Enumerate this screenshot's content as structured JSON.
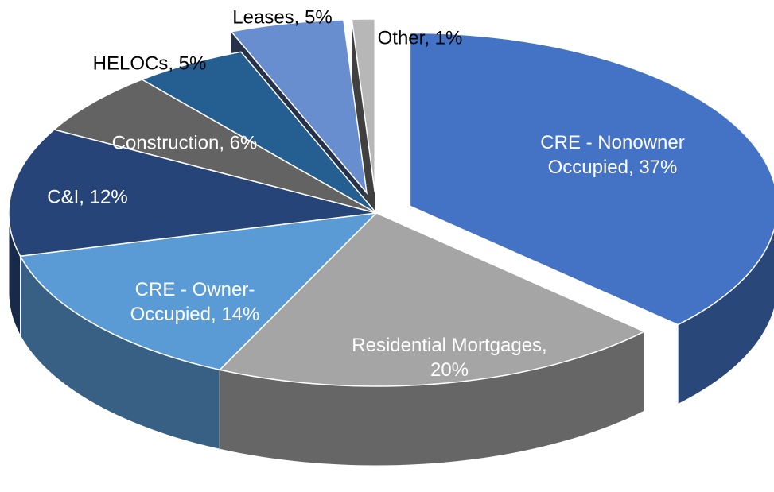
{
  "chart_data": {
    "type": "pie3d",
    "value_labels": [
      "CRE - Nonowner Occupied, 37%",
      "Residential Mortgages, 20%",
      "CRE - Owner-Occupied, 14%",
      "C&I, 12%",
      "Construction, 6%",
      "HELOCs, 5%",
      "Leases, 5%",
      "Other, 1%"
    ],
    "values": [
      37,
      20,
      14,
      12,
      6,
      5,
      5,
      1
    ],
    "colors": [
      "#4472c4",
      "#a5a5a5",
      "#5b9bd5",
      "#264478",
      "#636363",
      "#255e91",
      "#698ed0",
      "#b7b7b7"
    ]
  }
}
